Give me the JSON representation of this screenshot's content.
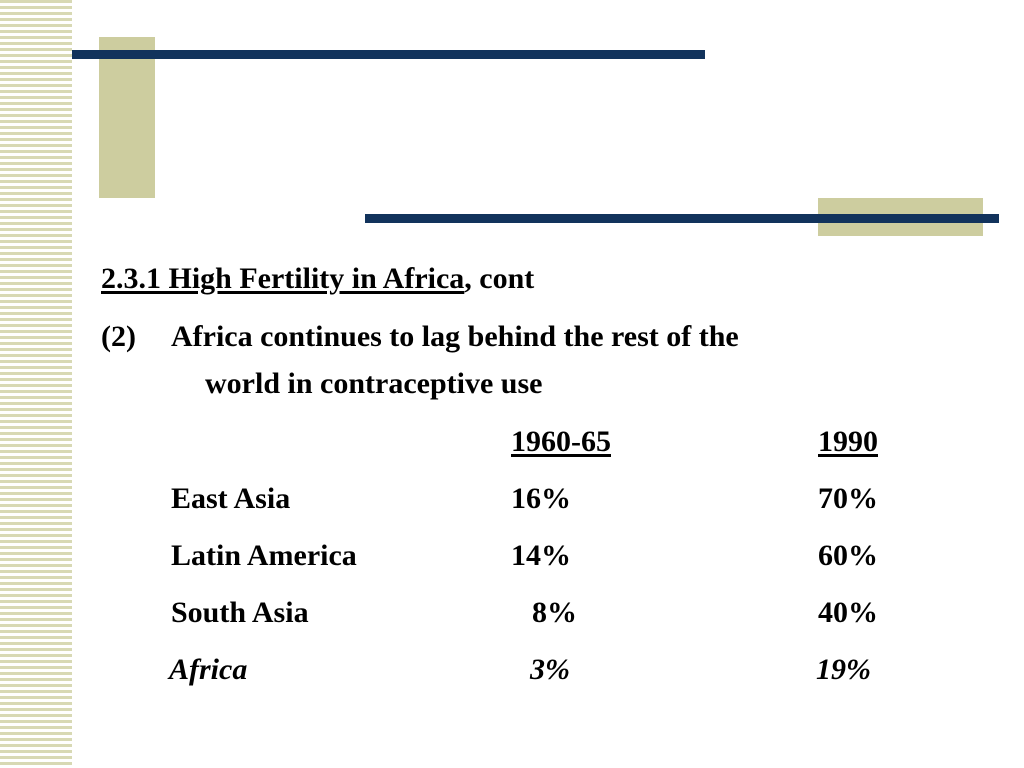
{
  "heading": {
    "underlined": "2.3.1 High Fertility in Africa",
    "rest": ", cont"
  },
  "point": {
    "number": "(2)",
    "line1": "Africa continues to lag behind the rest of the",
    "line2": "world in contraceptive use"
  },
  "table": {
    "columns": [
      "1960-65",
      "1990"
    ],
    "rows": [
      {
        "region": "East Asia",
        "v1": "16%",
        "v2": "70%",
        "italic": false
      },
      {
        "region": "Latin America",
        "v1": "14%",
        "v2": "60%",
        "italic": false
      },
      {
        "region": "South Asia",
        "v1": "8%",
        "v2": "40%",
        "italic": false
      },
      {
        "region": "Africa",
        "v1": "3%",
        "v2": "19%",
        "italic": true
      }
    ]
  },
  "colors": {
    "navy_line": "#12335c",
    "olive_block": "#cdcd9f",
    "stripe": "#d8d9b4"
  }
}
